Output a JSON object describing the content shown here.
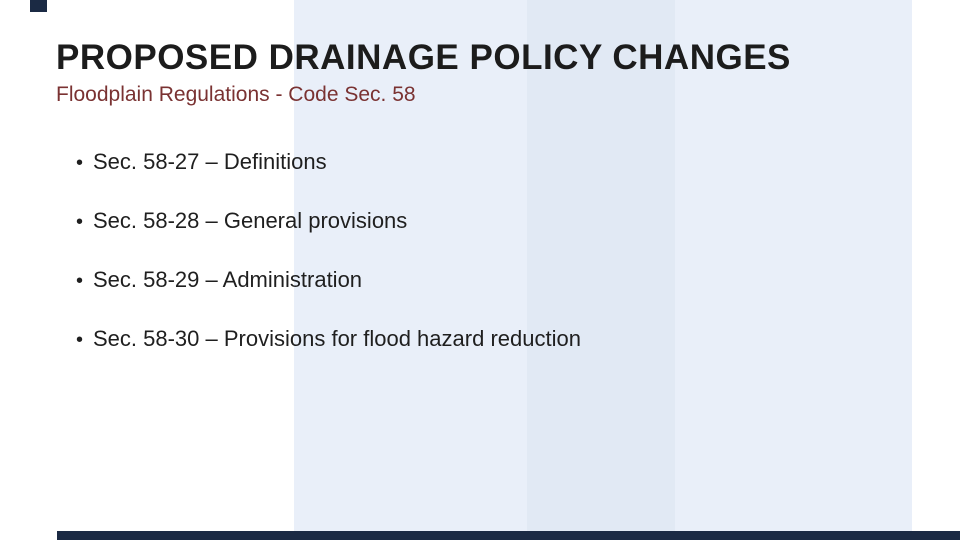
{
  "slide": {
    "title": "PROPOSED DRAINAGE POLICY CHANGES",
    "subtitle": "Floodplain Regulations - Code Sec. 58",
    "bullet_char": "•",
    "bullets": [
      "Sec. 58-27 – Definitions",
      "Sec. 58-28 – General provisions",
      "Sec. 58-29 – Administration",
      "Sec. 58-30 – Provisions for flood hazard reduction"
    ],
    "colors": {
      "page-bg": "#ffffff",
      "stripe-light": "#e9eff9",
      "stripe-mid": "#e1e9f4",
      "accent-dark": "#1b2a44",
      "title-color": "#1c1c1c",
      "subtitle-color": "#7a3232",
      "bullet-color": "#1f1f1f"
    }
  }
}
